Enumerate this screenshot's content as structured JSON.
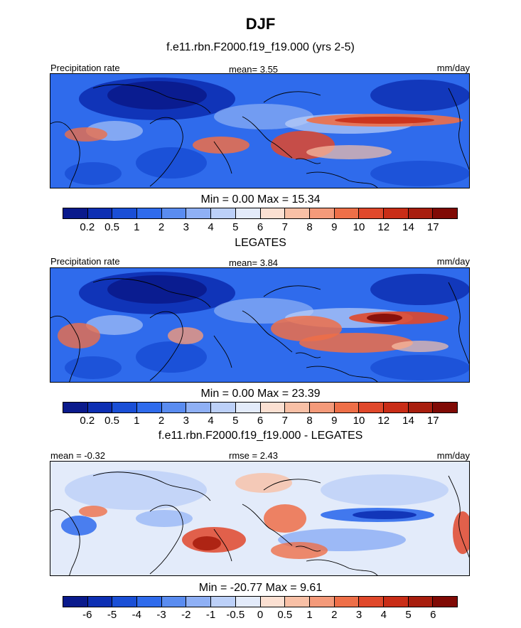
{
  "title": "DJF",
  "palette_precip": [
    "#0a1a8c",
    "#0d2fb3",
    "#1a4fd6",
    "#2f6bec",
    "#5a8cf0",
    "#8fb0f5",
    "#bcd0f8",
    "#e3ebfa",
    "#fbe0d2",
    "#f8c0a6",
    "#f49a7a",
    "#ee6f48",
    "#e0482b",
    "#c92d17",
    "#a81e0e",
    "#800a05"
  ],
  "palette_diff": [
    "#0a1a8c",
    "#0d2fb3",
    "#1a4fd6",
    "#2f6bec",
    "#5a8cf0",
    "#8fb0f5",
    "#bcd0f8",
    "#e3ebfa",
    "#fbe0d2",
    "#f8c0a6",
    "#f49a7a",
    "#ee6f48",
    "#e0482b",
    "#c92d17",
    "#a81e0e",
    "#800a05"
  ],
  "chart_data": [
    {
      "type": "heatmap",
      "title": "f.e11.rbn.F2000.f19_f19.000 (yrs 2-5)",
      "left_label": "Precipitation rate",
      "center_label": "mean=   3.55",
      "units": "mm/day",
      "mean": 3.55,
      "min": 0.0,
      "max": 15.34,
      "minmax_text": "Min =   0.00 Max =  15.34",
      "colorbar_ticks": [
        "0.2",
        "0.5",
        "1",
        "2",
        "3",
        "4",
        "5",
        "6",
        "7",
        "8",
        "9",
        "10",
        "12",
        "14",
        "17"
      ]
    },
    {
      "type": "heatmap",
      "title": "LEGATES",
      "left_label": "Precipitation rate",
      "center_label": "mean=   3.84",
      "units": "mm/day",
      "mean": 3.84,
      "min": 0.0,
      "max": 23.39,
      "minmax_text": "Min =   0.00 Max =  23.39",
      "colorbar_ticks": [
        "0.2",
        "0.5",
        "1",
        "2",
        "3",
        "4",
        "5",
        "6",
        "7",
        "8",
        "9",
        "10",
        "12",
        "14",
        "17"
      ]
    },
    {
      "type": "heatmap",
      "title": "f.e11.rbn.F2000.f19_f19.000 - LEGATES",
      "left_label": "mean =  -0.32",
      "center_label": "rmse =   2.43",
      "units": "mm/day",
      "mean": -0.32,
      "rmse": 2.43,
      "min": -20.77,
      "max": 9.61,
      "minmax_text": "Min = -20.77 Max =   9.61",
      "colorbar_ticks": [
        "-6",
        "-5",
        "-4",
        "-3",
        "-2",
        "-1",
        "-0.5",
        "0",
        "0.5",
        "1",
        "2",
        "3",
        "4",
        "5",
        "6"
      ]
    }
  ]
}
